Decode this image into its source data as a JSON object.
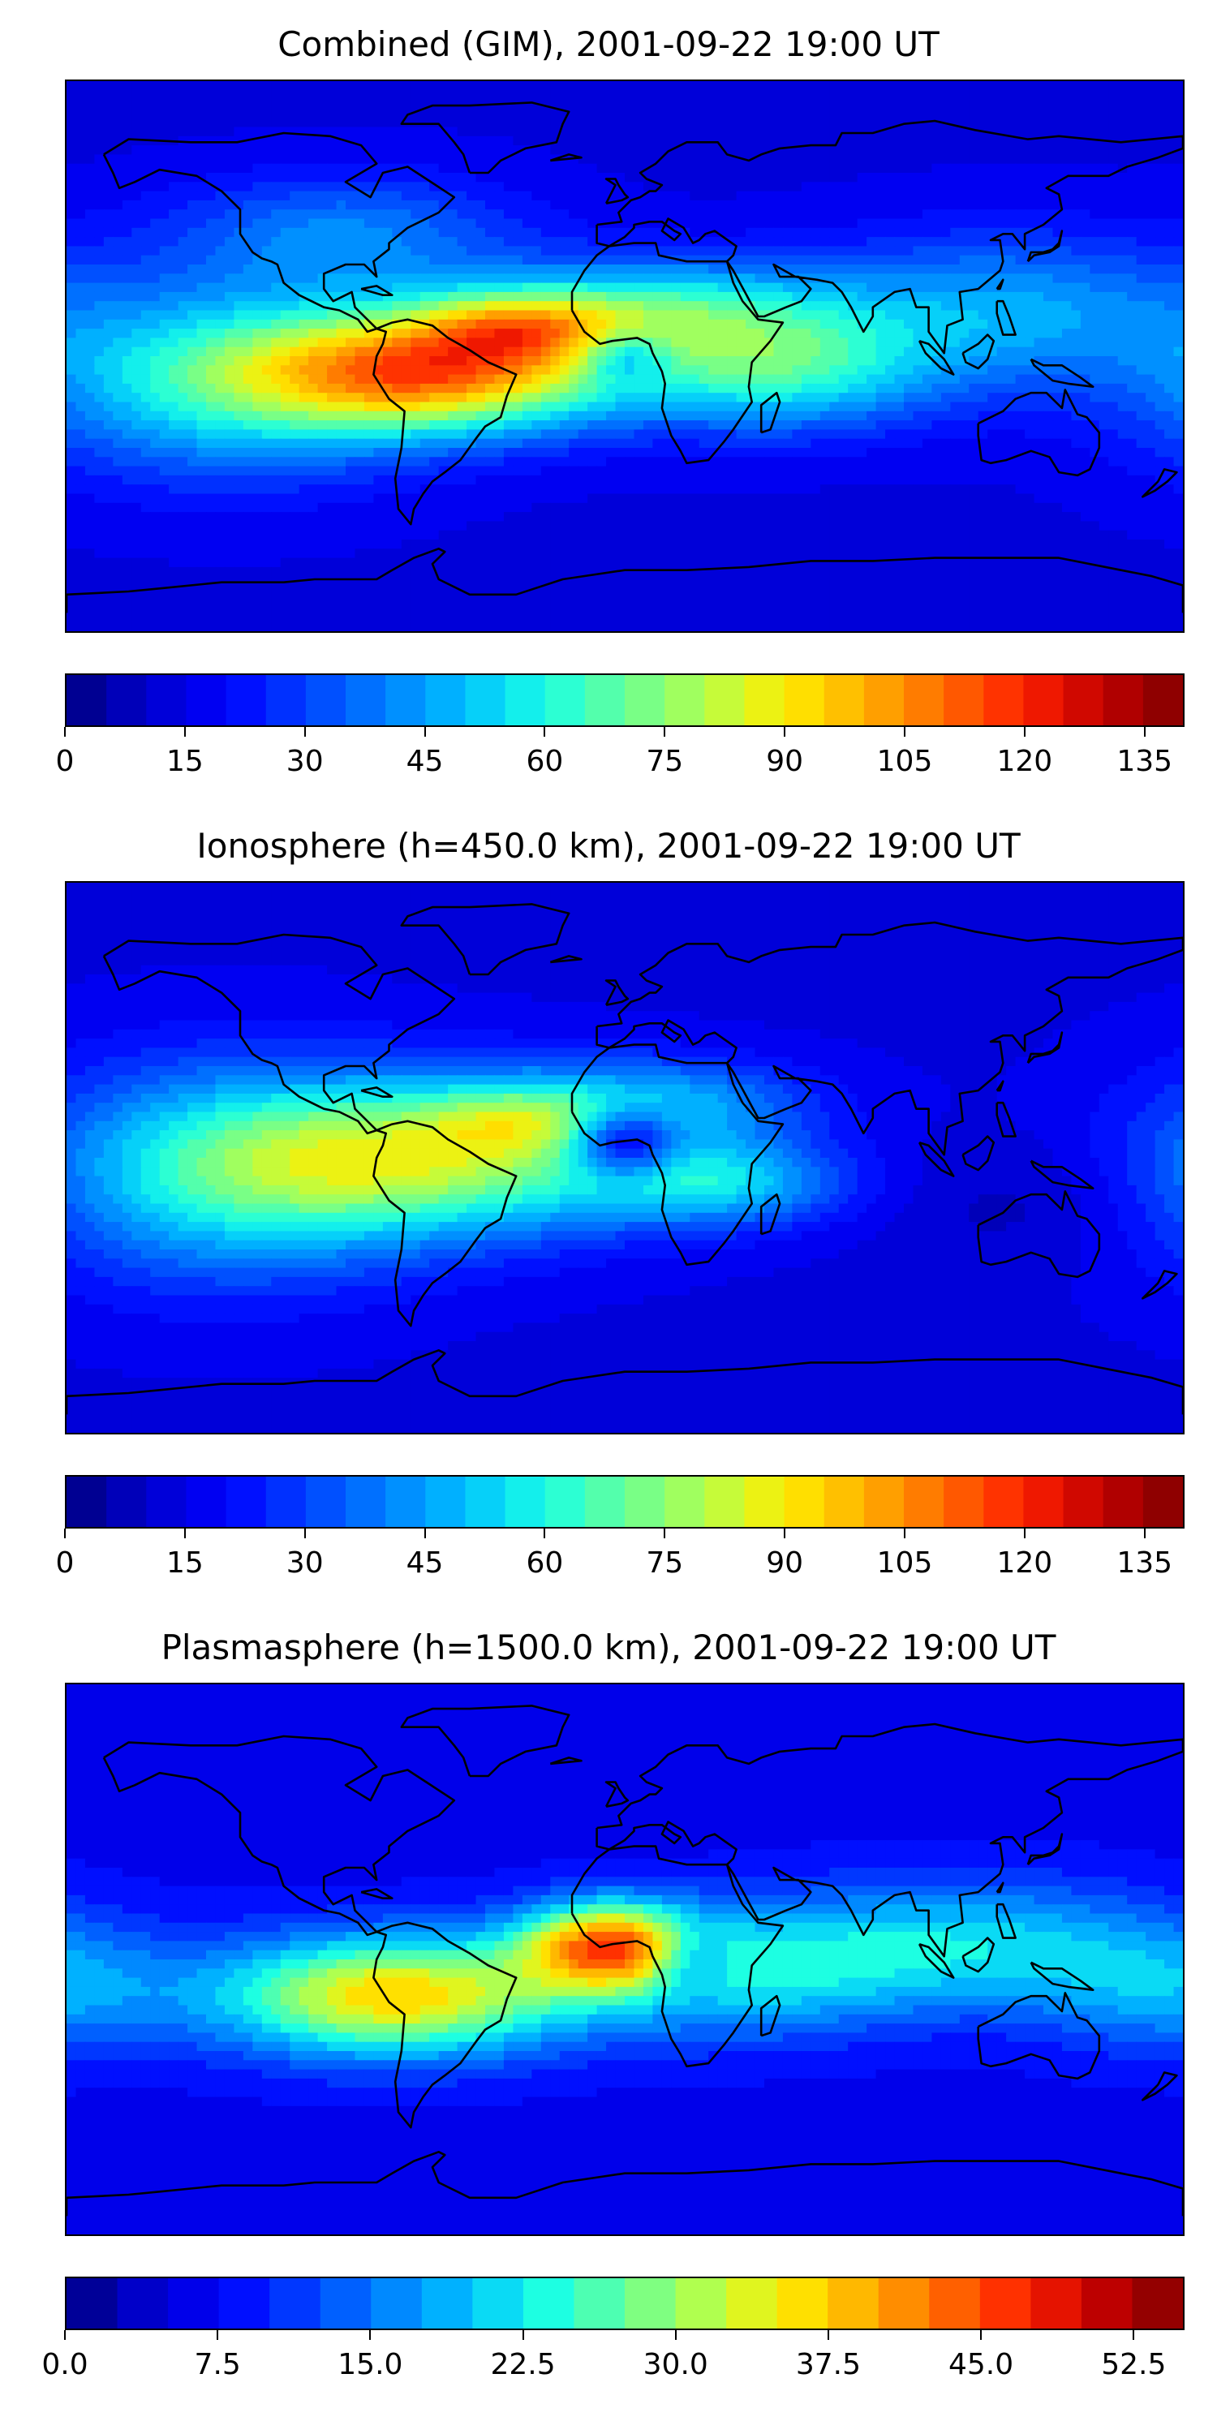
{
  "panels": [
    {
      "title": "Combined (GIM), 2001-09-22 19:00 UT",
      "colorbar": {
        "min": 0,
        "max": 140,
        "levels": 28,
        "ticks": [
          "0",
          "15",
          "30",
          "45",
          "60",
          "75",
          "90",
          "105",
          "120",
          "135"
        ],
        "tick_values": [
          0,
          15,
          30,
          45,
          60,
          75,
          90,
          105,
          120,
          135
        ]
      },
      "field": {
        "base": 0.1,
        "blobs": [
          {
            "lon": -60,
            "lat": -5,
            "amp": 0.62,
            "slon": 42,
            "slat": 14
          },
          {
            "lon": -35,
            "lat": 10,
            "amp": 0.25,
            "slon": 22,
            "slat": 8
          },
          {
            "lon": -130,
            "lat": -8,
            "amp": 0.3,
            "slon": 45,
            "slat": 22
          },
          {
            "lon": 10,
            "lat": 15,
            "amp": 0.3,
            "slon": 40,
            "slat": 12
          },
          {
            "lon": 50,
            "lat": -5,
            "amp": 0.3,
            "slon": 35,
            "slat": 14
          },
          {
            "lon": 120,
            "lat": 15,
            "amp": 0.22,
            "slon": 45,
            "slat": 18
          },
          {
            "lon": -90,
            "lat": 40,
            "amp": 0.18,
            "slon": 40,
            "slat": 14
          },
          {
            "lon": 0,
            "lat": 0,
            "amp": -0.18,
            "slon": 10,
            "slat": 6
          }
        ]
      }
    },
    {
      "title": "Ionosphere  (h=450.0 km), 2001-09-22 19:00 UT",
      "colorbar": {
        "min": 0,
        "max": 140,
        "levels": 28,
        "ticks": [
          "0",
          "15",
          "30",
          "45",
          "60",
          "75",
          "90",
          "105",
          "120",
          "135"
        ],
        "tick_values": [
          0,
          15,
          30,
          45,
          60,
          75,
          90,
          105,
          120,
          135
        ]
      },
      "field": {
        "base": 0.1,
        "blobs": [
          {
            "lon": -60,
            "lat": 0,
            "amp": 0.42,
            "slon": 50,
            "slat": 18
          },
          {
            "lon": -35,
            "lat": 12,
            "amp": 0.14,
            "slon": 20,
            "slat": 8
          },
          {
            "lon": -130,
            "lat": -5,
            "amp": 0.28,
            "slon": 45,
            "slat": 25
          },
          {
            "lon": 10,
            "lat": 18,
            "amp": 0.2,
            "slon": 35,
            "slat": 10
          },
          {
            "lon": 30,
            "lat": -8,
            "amp": 0.25,
            "slon": 30,
            "slat": 10
          },
          {
            "lon": 0,
            "lat": 5,
            "amp": -0.3,
            "slon": 12,
            "slat": 8
          },
          {
            "lon": 130,
            "lat": -15,
            "amp": -0.05,
            "slon": 30,
            "slat": 15
          }
        ]
      }
    },
    {
      "title": "Plasmasphere (h=1500.0 km), 2001-09-22 19:00 UT",
      "colorbar": {
        "min": 0,
        "max": 55,
        "levels": 22,
        "ticks": [
          "0.0",
          "7.5",
          "15.0",
          "22.5",
          "30.0",
          "37.5",
          "45.0",
          "52.5"
        ],
        "tick_values": [
          0,
          7.5,
          15,
          22.5,
          30,
          37.5,
          45,
          52.5
        ]
      },
      "field": {
        "base": 0.12,
        "blobs": [
          {
            "lon": -75,
            "lat": -12,
            "amp": 0.55,
            "slon": 40,
            "slat": 14
          },
          {
            "lon": -5,
            "lat": 5,
            "amp": 0.55,
            "slon": 20,
            "slat": 10
          },
          {
            "lon": 35,
            "lat": -5,
            "amp": 0.25,
            "slon": 40,
            "slat": 15
          },
          {
            "lon": 110,
            "lat": 5,
            "amp": 0.25,
            "slon": 45,
            "slat": 15
          },
          {
            "lon": 20,
            "lat": 0,
            "amp": -0.2,
            "slon": 10,
            "slat": 8
          },
          {
            "lon": 175,
            "lat": -10,
            "amp": 0.18,
            "slon": 30,
            "slat": 15
          }
        ]
      }
    }
  ],
  "colors": {
    "jet": [
      "#00007f",
      "#0000cc",
      "#0000ff",
      "#0040ff",
      "#0080ff",
      "#00c0ff",
      "#19ffe6",
      "#66ff99",
      "#b3ff4c",
      "#ffee00",
      "#ffb000",
      "#ff6a00",
      "#ff2000",
      "#c00000",
      "#7f0000"
    ]
  }
}
